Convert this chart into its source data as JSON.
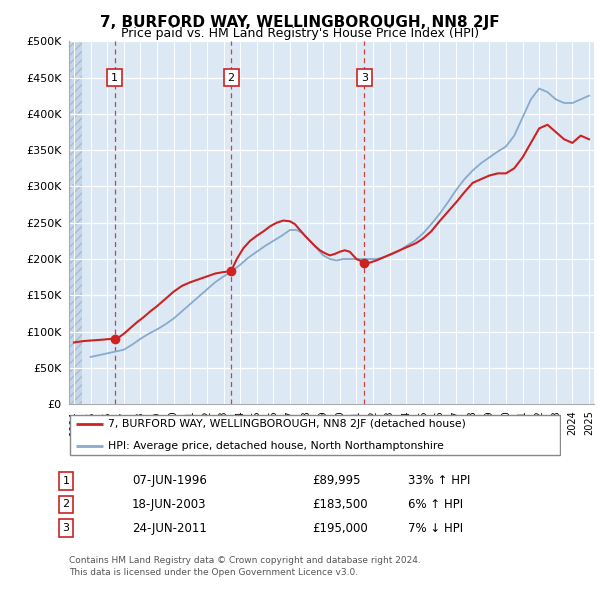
{
  "title": "7, BURFORD WAY, WELLINGBOROUGH, NN8 2JF",
  "subtitle": "Price paid vs. HM Land Registry's House Price Index (HPI)",
  "title_fontsize": 11,
  "subtitle_fontsize": 9,
  "ylabel_ticks": [
    "£0",
    "£50K",
    "£100K",
    "£150K",
    "£200K",
    "£250K",
    "£300K",
    "£350K",
    "£400K",
    "£450K",
    "£500K"
  ],
  "ytick_values": [
    0,
    50000,
    100000,
    150000,
    200000,
    250000,
    300000,
    350000,
    400000,
    450000,
    500000
  ],
  "xlim_start": 1993.7,
  "xlim_end": 2025.3,
  "ylim": [
    0,
    500000
  ],
  "chart_bg_color": "#dce9f5",
  "hatch_color": "#c8d8e8",
  "grid_color": "#ffffff",
  "sale_dates_decimal": [
    1996.44,
    2003.46,
    2011.47
  ],
  "sale_prices": [
    89995,
    183500,
    195000
  ],
  "sale_labels": [
    "1",
    "2",
    "3"
  ],
  "dashed_line_color": "#cc2222",
  "red_line_color": "#cc2222",
  "blue_line_color": "#88aacc",
  "legend_label_red": "7, BURFORD WAY, WELLINGBOROUGH, NN8 2JF (detached house)",
  "legend_label_blue": "HPI: Average price, detached house, North Northamptonshire",
  "table_rows": [
    [
      "1",
      "07-JUN-1996",
      "£89,995",
      "33% ↑ HPI"
    ],
    [
      "2",
      "18-JUN-2003",
      "£183,500",
      "6% ↑ HPI"
    ],
    [
      "3",
      "24-JUN-2011",
      "£195,000",
      "7% ↓ HPI"
    ]
  ],
  "footer_text": "Contains HM Land Registry data © Crown copyright and database right 2024.\nThis data is licensed under the Open Government Licence v3.0.",
  "hatch_end_year": 1994.5,
  "red_line_data_x": [
    1994.0,
    1994.3,
    1994.6,
    1994.9,
    1995.2,
    1995.5,
    1995.8,
    1996.0,
    1996.2,
    1996.44,
    1996.7,
    1997.0,
    1997.4,
    1997.8,
    1998.2,
    1998.6,
    1999.0,
    1999.5,
    2000.0,
    2000.5,
    2001.0,
    2001.5,
    2002.0,
    2002.5,
    2003.0,
    2003.46,
    2003.8,
    2004.2,
    2004.6,
    2005.0,
    2005.4,
    2005.8,
    2006.2,
    2006.6,
    2007.0,
    2007.3,
    2007.6,
    2007.9,
    2008.2,
    2008.5,
    2008.8,
    2009.1,
    2009.4,
    2009.7,
    2010.0,
    2010.3,
    2010.6,
    2011.0,
    2011.47,
    2011.8,
    2012.2,
    2012.6,
    2013.0,
    2013.4,
    2013.8,
    2014.2,
    2014.6,
    2015.0,
    2015.5,
    2016.0,
    2016.5,
    2017.0,
    2017.5,
    2018.0,
    2018.5,
    2019.0,
    2019.5,
    2020.0,
    2020.5,
    2021.0,
    2021.5,
    2022.0,
    2022.5,
    2023.0,
    2023.5,
    2024.0,
    2024.5,
    2025.0
  ],
  "red_line_data_y": [
    85000,
    86000,
    87000,
    87500,
    88000,
    88500,
    89000,
    89500,
    89800,
    89995,
    92000,
    97000,
    105000,
    113000,
    120000,
    128000,
    135000,
    145000,
    155000,
    163000,
    168000,
    172000,
    176000,
    180000,
    182000,
    183500,
    200000,
    215000,
    225000,
    232000,
    238000,
    245000,
    250000,
    253000,
    252000,
    248000,
    240000,
    232000,
    225000,
    218000,
    212000,
    208000,
    205000,
    207000,
    210000,
    212000,
    210000,
    200000,
    195000,
    195000,
    198000,
    202000,
    206000,
    210000,
    214000,
    218000,
    222000,
    228000,
    238000,
    252000,
    265000,
    278000,
    292000,
    305000,
    310000,
    315000,
    318000,
    318000,
    325000,
    340000,
    360000,
    380000,
    385000,
    375000,
    365000,
    360000,
    370000,
    365000
  ],
  "blue_line_data_x": [
    1995.0,
    1995.4,
    1995.8,
    1996.2,
    1996.6,
    1997.0,
    1997.5,
    1998.0,
    1998.5,
    1999.0,
    1999.5,
    2000.0,
    2000.5,
    2001.0,
    2001.5,
    2002.0,
    2002.5,
    2003.0,
    2003.5,
    2004.0,
    2004.5,
    2005.0,
    2005.5,
    2006.0,
    2006.5,
    2007.0,
    2007.4,
    2007.8,
    2008.2,
    2008.6,
    2009.0,
    2009.4,
    2009.8,
    2010.2,
    2010.6,
    2011.0,
    2011.4,
    2011.8,
    2012.2,
    2012.6,
    2013.0,
    2013.5,
    2014.0,
    2014.5,
    2015.0,
    2015.5,
    2016.0,
    2016.5,
    2017.0,
    2017.5,
    2018.0,
    2018.5,
    2019.0,
    2019.5,
    2020.0,
    2020.5,
    2021.0,
    2021.5,
    2022.0,
    2022.5,
    2023.0,
    2023.5,
    2024.0,
    2024.5,
    2025.0
  ],
  "blue_line_data_y": [
    65000,
    67000,
    69000,
    71000,
    73000,
    75000,
    82000,
    90000,
    97000,
    103000,
    110000,
    118000,
    128000,
    138000,
    148000,
    158000,
    168000,
    176000,
    183000,
    192000,
    202000,
    210000,
    218000,
    225000,
    232000,
    240000,
    240000,
    235000,
    225000,
    215000,
    205000,
    200000,
    198000,
    200000,
    200000,
    200000,
    200000,
    200000,
    200000,
    202000,
    205000,
    210000,
    218000,
    225000,
    235000,
    248000,
    262000,
    278000,
    295000,
    310000,
    322000,
    332000,
    340000,
    348000,
    355000,
    370000,
    395000,
    420000,
    435000,
    430000,
    420000,
    415000,
    415000,
    420000,
    425000
  ]
}
